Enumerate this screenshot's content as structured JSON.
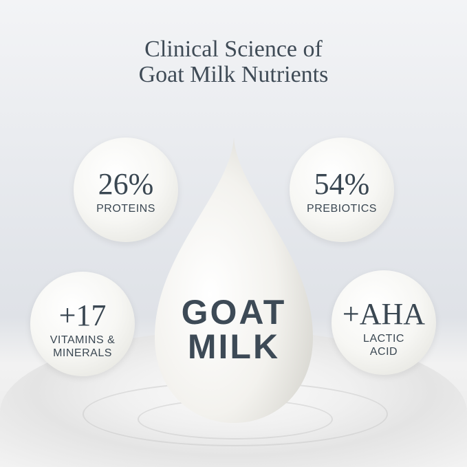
{
  "title": {
    "line1": "Clinical Science of",
    "line2": "Goat Milk Nutrients"
  },
  "drop": {
    "line1": "GOAT",
    "line2": "MILK"
  },
  "bubbles": [
    {
      "value": "26%",
      "label1": "PROTEINS",
      "label2": ""
    },
    {
      "value": "54%",
      "label1": "PREBIOTICS",
      "label2": ""
    },
    {
      "value": "+17",
      "label1": "VITAMINS &",
      "label2": "MINERALS"
    },
    {
      "value": "+AHA",
      "label1": "LACTIC",
      "label2": "ACID"
    }
  ],
  "colors": {
    "text": "#3c4954",
    "milk": "#f5f5f2",
    "background": "#e2e5ea"
  }
}
